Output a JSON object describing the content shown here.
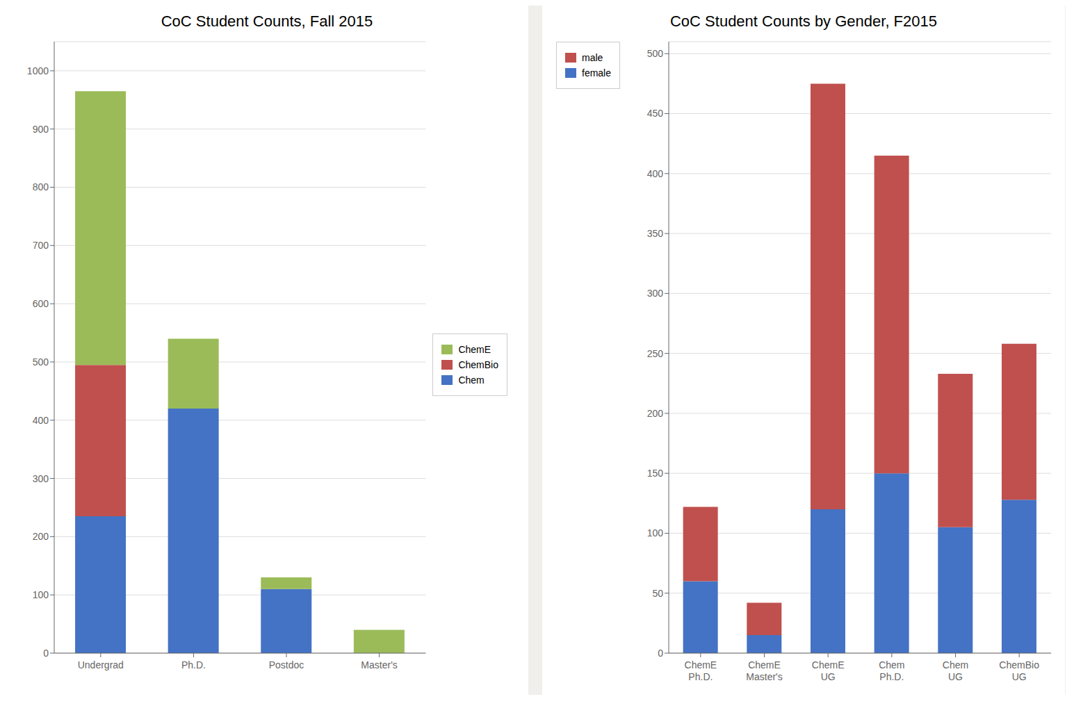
{
  "chart_data": [
    {
      "type": "bar",
      "title": "CoC Student Counts, Fall 2015",
      "categories": [
        "Undergrad",
        "Ph.D.",
        "Postdoc",
        "Master's"
      ],
      "series": [
        {
          "name": "Chem",
          "color": "#4472C4",
          "values": [
            235,
            420,
            110,
            0
          ]
        },
        {
          "name": "ChemBio",
          "color": "#C0504D",
          "values": [
            260,
            0,
            0,
            0
          ]
        },
        {
          "name": "ChemE",
          "color": "#9BBB59",
          "values": [
            470,
            120,
            20,
            40
          ]
        }
      ],
      "ylim": [
        0,
        1050
      ],
      "yticks": [
        0,
        100,
        200,
        300,
        400,
        500,
        600,
        700,
        800,
        900,
        1000
      ],
      "stacked": true,
      "grid": true,
      "legend": "right"
    },
    {
      "type": "bar",
      "title": "CoC Student Counts by Gender, F2015",
      "categories": [
        "ChemE\nPh.D.",
        "ChemE\nMaster's",
        "ChemE\nUG",
        "Chem\nPh.D.",
        "Chem\nUG",
        "ChemBio\nUG"
      ],
      "series": [
        {
          "name": "female",
          "color": "#4472C4",
          "values": [
            60,
            15,
            120,
            150,
            105,
            128
          ]
        },
        {
          "name": "male",
          "color": "#C0504D",
          "values": [
            62,
            27,
            355,
            265,
            128,
            130
          ]
        }
      ],
      "ylim": [
        0,
        510
      ],
      "yticks": [
        0,
        50,
        100,
        150,
        200,
        250,
        300,
        350,
        400,
        450,
        500
      ],
      "stacked": true,
      "grid": true,
      "legend": "upper left"
    }
  ]
}
